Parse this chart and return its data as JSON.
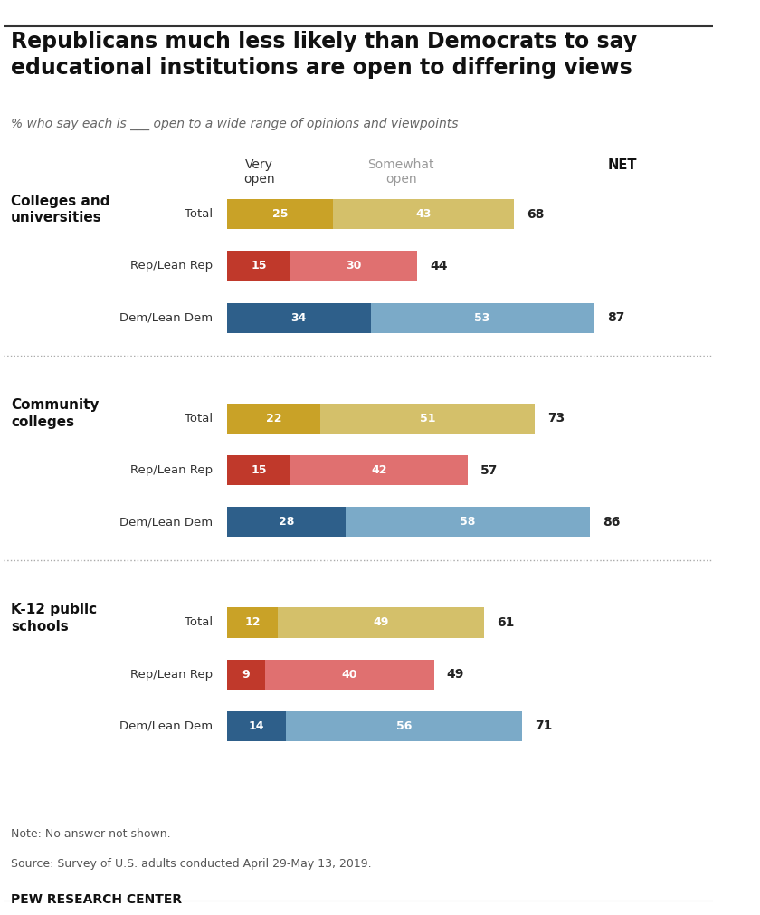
{
  "title": "Republicans much less likely than Democrats to say\neducational institutions are open to differing views",
  "subtitle": "% who say each is ___ open to a wide range of opinions and viewpoints",
  "col_header_very": "Very\nopen",
  "col_header_somewhat": "Somewhat\nopen",
  "col_header_net": "NET",
  "groups": [
    {
      "label": "Colleges and\nuniversities",
      "rows": [
        {
          "name": "Total",
          "very": 25,
          "somewhat": 43,
          "net": 68
        },
        {
          "name": "Rep/Lean Rep",
          "very": 15,
          "somewhat": 30,
          "net": 44
        },
        {
          "name": "Dem/Lean Dem",
          "very": 34,
          "somewhat": 53,
          "net": 87
        }
      ]
    },
    {
      "label": "Community\ncolleges",
      "rows": [
        {
          "name": "Total",
          "very": 22,
          "somewhat": 51,
          "net": 73
        },
        {
          "name": "Rep/Lean Rep",
          "very": 15,
          "somewhat": 42,
          "net": 57
        },
        {
          "name": "Dem/Lean Dem",
          "very": 28,
          "somewhat": 58,
          "net": 86
        }
      ]
    },
    {
      "label": "K-12 public\nschools",
      "rows": [
        {
          "name": "Total",
          "very": 12,
          "somewhat": 49,
          "net": 61
        },
        {
          "name": "Rep/Lean Rep",
          "very": 9,
          "somewhat": 40,
          "net": 49
        },
        {
          "name": "Dem/Lean Dem",
          "very": 14,
          "somewhat": 56,
          "net": 71
        }
      ]
    }
  ],
  "colors": {
    "total_very": "#C9A227",
    "total_somewhat": "#D4C06A",
    "rep_very": "#C0392B",
    "rep_somewhat": "#E07070",
    "dem_very": "#2E5F8A",
    "dem_somewhat": "#7BAAC8"
  },
  "bar_text_color": "#FFFFFF",
  "net_text_color": "#222222",
  "note": "Note: No answer not shown.",
  "source": "Source: Survey of U.S. adults conducted April 29-May 13, 2019.",
  "footer": "PEW RESEARCH CENTER",
  "bg_color": "#FFFFFF"
}
